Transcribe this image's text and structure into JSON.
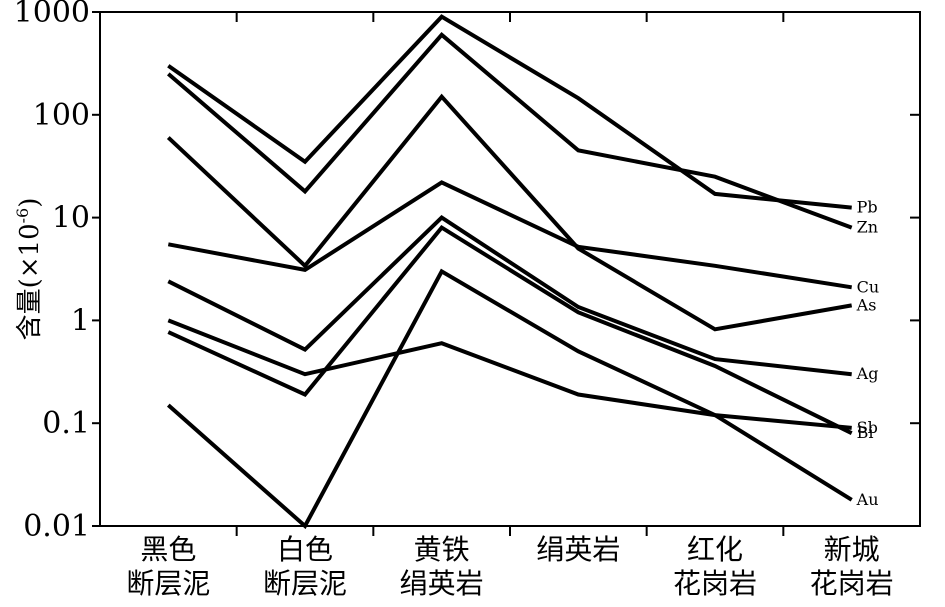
{
  "chart_data": {
    "type": "line",
    "ylabel": "含量(×10",
    "ylabel_sup": "-6",
    "ylabel_close": ")",
    "yscale": "log",
    "ylim": [
      0.01,
      1000
    ],
    "yticks": [
      {
        "value": 0.01,
        "label": "0.01"
      },
      {
        "value": 0.1,
        "label": "0.1"
      },
      {
        "value": 1,
        "label": "1"
      },
      {
        "value": 10,
        "label": "10"
      },
      {
        "value": 100,
        "label": "100"
      },
      {
        "value": 1000,
        "label": "1000"
      }
    ],
    "categories": [
      [
        "黑色",
        "断层泥"
      ],
      [
        "白色",
        "断层泥"
      ],
      [
        "黄铁",
        "绢英岩"
      ],
      [
        "绢英岩"
      ],
      [
        "红化",
        "花岗岩"
      ],
      [
        "新城",
        "花岗岩"
      ]
    ],
    "series": [
      {
        "name": "Pb",
        "values": [
          300,
          35,
          900,
          145,
          17,
          12.5
        ]
      },
      {
        "name": "Zn",
        "values": [
          250,
          18,
          600,
          45,
          25,
          8
        ]
      },
      {
        "name": "Cu",
        "values": [
          5.5,
          3.1,
          22,
          5.2,
          3.4,
          2.1
        ]
      },
      {
        "name": "As",
        "values": [
          60,
          3.4,
          150,
          5,
          0.82,
          1.4
        ]
      },
      {
        "name": "Ag",
        "values": [
          2.4,
          0.52,
          10,
          1.35,
          0.42,
          0.3
        ]
      },
      {
        "name": "Sb",
        "values": [
          1.0,
          0.3,
          0.6,
          0.19,
          0.12,
          0.09
        ]
      },
      {
        "name": "Bi",
        "values": [
          0.77,
          0.19,
          8,
          1.2,
          0.36,
          0.08
        ]
      },
      {
        "name": "Au",
        "values": [
          0.15,
          0.01,
          3,
          0.5,
          0.12,
          0.018
        ]
      }
    ]
  }
}
